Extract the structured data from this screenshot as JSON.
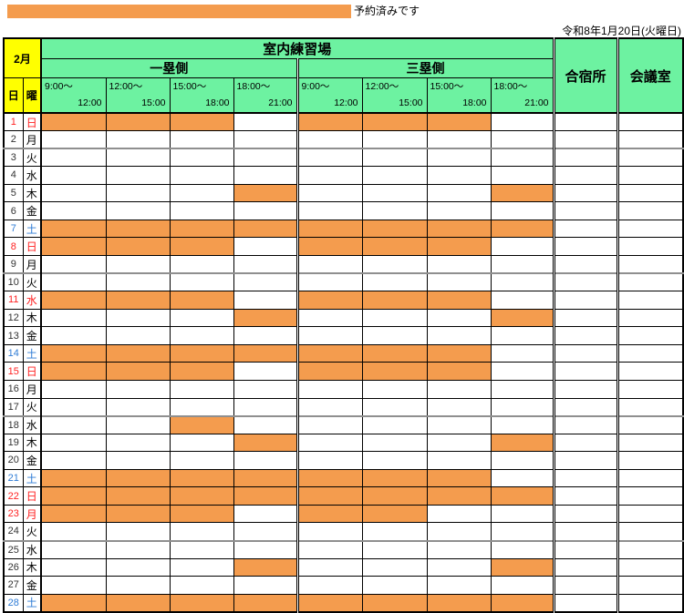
{
  "colors": {
    "reserved": "#F49C4E",
    "header_green": "#6DF2A1",
    "month_yellow": "#FFFF00",
    "sunday_red": "#FF2222",
    "saturday_blue": "#2F7CD6"
  },
  "legend": {
    "label": "予約済みです"
  },
  "header": {
    "date_label": "令和8年1月20日(火曜日)"
  },
  "table": {
    "month_label": "2月",
    "day_header": "日",
    "weekday_header": "曜",
    "facility_header": "室内練習場",
    "first_base_header": "一塁側",
    "third_base_header": "三塁側",
    "lodging_header": "合宿所",
    "meeting_header": "会議室",
    "time_slots": [
      {
        "from": "9:00～",
        "to": "12:00"
      },
      {
        "from": "12:00～",
        "to": "15:00"
      },
      {
        "from": "15:00～",
        "to": "18:00"
      },
      {
        "from": "18:00～",
        "to": "21:00"
      }
    ],
    "rows": [
      {
        "day": 1,
        "weekday": "日",
        "color": "red",
        "page_break": false,
        "slots": [
          1,
          1,
          1,
          0,
          1,
          1,
          1,
          0
        ]
      },
      {
        "day": 2,
        "weekday": "月",
        "color": "black",
        "page_break": false,
        "slots": [
          0,
          0,
          0,
          0,
          0,
          0,
          0,
          0
        ]
      },
      {
        "day": 3,
        "weekday": "火",
        "color": "black",
        "page_break": true,
        "slots": [
          0,
          0,
          0,
          0,
          0,
          0,
          0,
          0
        ]
      },
      {
        "day": 4,
        "weekday": "水",
        "color": "black",
        "page_break": false,
        "slots": [
          0,
          0,
          0,
          0,
          0,
          0,
          0,
          0
        ]
      },
      {
        "day": 5,
        "weekday": "木",
        "color": "black",
        "page_break": false,
        "slots": [
          0,
          0,
          0,
          1,
          0,
          0,
          0,
          1
        ]
      },
      {
        "day": 6,
        "weekday": "金",
        "color": "black",
        "page_break": false,
        "slots": [
          0,
          0,
          0,
          0,
          0,
          0,
          0,
          0
        ]
      },
      {
        "day": 7,
        "weekday": "土",
        "color": "blue",
        "page_break": false,
        "slots": [
          1,
          1,
          1,
          1,
          1,
          1,
          1,
          1
        ]
      },
      {
        "day": 8,
        "weekday": "日",
        "color": "red",
        "page_break": false,
        "slots": [
          1,
          1,
          1,
          0,
          1,
          1,
          1,
          0
        ]
      },
      {
        "day": 9,
        "weekday": "月",
        "color": "black",
        "page_break": false,
        "slots": [
          0,
          0,
          0,
          0,
          0,
          0,
          0,
          0
        ]
      },
      {
        "day": 10,
        "weekday": "火",
        "color": "black",
        "page_break": true,
        "slots": [
          0,
          0,
          0,
          0,
          0,
          0,
          0,
          0
        ]
      },
      {
        "day": 11,
        "weekday": "水",
        "color": "red",
        "page_break": false,
        "slots": [
          1,
          1,
          1,
          0,
          1,
          1,
          1,
          0
        ]
      },
      {
        "day": 12,
        "weekday": "木",
        "color": "black",
        "page_break": false,
        "slots": [
          0,
          0,
          0,
          1,
          0,
          0,
          0,
          1
        ]
      },
      {
        "day": 13,
        "weekday": "金",
        "color": "black",
        "page_break": false,
        "slots": [
          0,
          0,
          0,
          0,
          0,
          0,
          0,
          0
        ]
      },
      {
        "day": 14,
        "weekday": "土",
        "color": "blue",
        "page_break": false,
        "slots": [
          1,
          1,
          1,
          1,
          1,
          1,
          1,
          0
        ]
      },
      {
        "day": 15,
        "weekday": "日",
        "color": "red",
        "page_break": false,
        "slots": [
          1,
          1,
          1,
          0,
          1,
          1,
          1,
          0
        ]
      },
      {
        "day": 16,
        "weekday": "月",
        "color": "black",
        "page_break": false,
        "slots": [
          0,
          0,
          0,
          0,
          0,
          0,
          0,
          0
        ]
      },
      {
        "day": 17,
        "weekday": "火",
        "color": "black",
        "page_break": false,
        "slots": [
          0,
          0,
          0,
          0,
          0,
          0,
          0,
          0
        ]
      },
      {
        "day": 18,
        "weekday": "水",
        "color": "black",
        "page_break": true,
        "slots": [
          0,
          0,
          1,
          0,
          0,
          0,
          0,
          0
        ]
      },
      {
        "day": 19,
        "weekday": "木",
        "color": "black",
        "page_break": false,
        "slots": [
          0,
          0,
          0,
          1,
          0,
          0,
          0,
          1
        ]
      },
      {
        "day": 20,
        "weekday": "金",
        "color": "black",
        "page_break": false,
        "slots": [
          0,
          0,
          0,
          0,
          0,
          0,
          0,
          0
        ]
      },
      {
        "day": 21,
        "weekday": "土",
        "color": "blue",
        "page_break": false,
        "slots": [
          1,
          1,
          1,
          1,
          1,
          1,
          1,
          0
        ]
      },
      {
        "day": 22,
        "weekday": "日",
        "color": "red",
        "page_break": false,
        "slots": [
          1,
          1,
          1,
          1,
          1,
          1,
          1,
          1
        ]
      },
      {
        "day": 23,
        "weekday": "月",
        "color": "red",
        "page_break": false,
        "slots": [
          1,
          1,
          1,
          0,
          1,
          1,
          0,
          0
        ]
      },
      {
        "day": 24,
        "weekday": "火",
        "color": "black",
        "page_break": false,
        "slots": [
          0,
          0,
          0,
          0,
          0,
          0,
          0,
          0
        ]
      },
      {
        "day": 25,
        "weekday": "水",
        "color": "black",
        "page_break": true,
        "slots": [
          0,
          0,
          0,
          0,
          0,
          0,
          0,
          0
        ]
      },
      {
        "day": 26,
        "weekday": "木",
        "color": "black",
        "page_break": false,
        "slots": [
          0,
          0,
          0,
          1,
          0,
          0,
          0,
          1
        ]
      },
      {
        "day": 27,
        "weekday": "金",
        "color": "black",
        "page_break": false,
        "slots": [
          0,
          0,
          0,
          0,
          0,
          0,
          0,
          0
        ]
      },
      {
        "day": 28,
        "weekday": "土",
        "color": "blue",
        "page_break": false,
        "slots": [
          1,
          1,
          1,
          1,
          1,
          1,
          1,
          1
        ]
      }
    ]
  }
}
